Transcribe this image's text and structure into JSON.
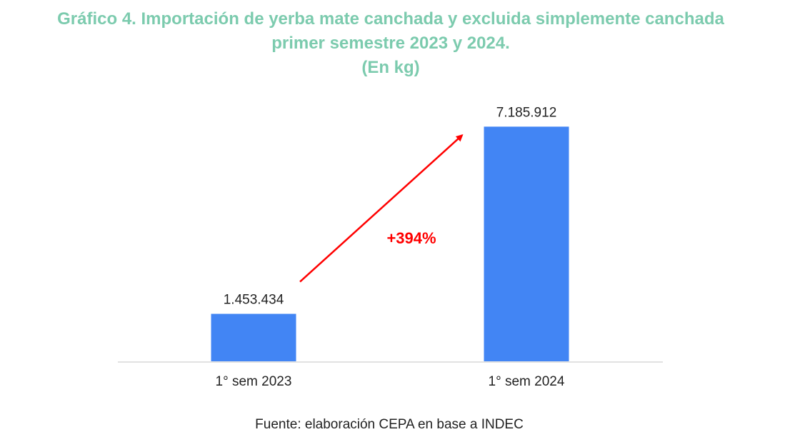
{
  "chart_data": {
    "type": "bar",
    "title": [
      "Gráfico 4. Importación de yerba mate canchada y excluida simplemente canchada",
      "primer semestre 2023 y 2024.",
      "(En kg)"
    ],
    "categories": [
      "1° sem 2023",
      "1° sem 2024"
    ],
    "values": [
      1453434,
      7185912
    ],
    "value_labels": [
      "1.453.434",
      "7.185.912"
    ],
    "ylim": [
      0,
      7500000
    ],
    "grid": false,
    "legend": "none",
    "bar_color": "#4285f4",
    "annotation": {
      "text": "+394%",
      "color": "#ff0000",
      "type": "arrow",
      "from_category": "1° sem 2023",
      "to_category": "1° sem 2024"
    }
  },
  "source": "Fuente: elaboración CEPA en base a INDEC",
  "colors": {
    "title": "#7ccbae",
    "axis": "#d9d9d9",
    "text": "#222222"
  }
}
